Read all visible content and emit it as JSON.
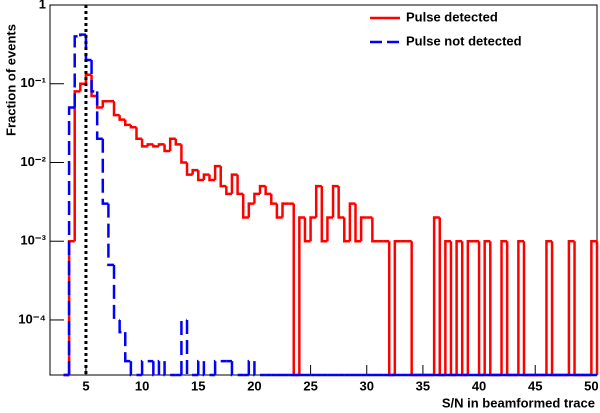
{
  "chart_data": {
    "type": "histogram",
    "xlabel": "S/N in beamformed trace",
    "ylabel": "Fraction of events",
    "log_y": true,
    "xlim": [
      1.8,
      50.5
    ],
    "ylim": [
      2e-05,
      1
    ],
    "xticks": [
      5,
      10,
      15,
      20,
      25,
      30,
      35,
      40,
      45,
      50
    ],
    "yticks": [
      1,
      {
        "value": 0.1,
        "label": "10⁻¹"
      },
      {
        "value": 0.01,
        "label": "10⁻²"
      },
      {
        "value": 0.001,
        "label": "10⁻³"
      },
      {
        "value": 0.0001,
        "label": "10⁻⁴"
      }
    ],
    "vlines": [
      5
    ],
    "legend": "top-right",
    "bins": [
      3,
      3.5,
      4,
      4.5,
      5,
      5.5,
      6,
      6.5,
      7,
      7.5,
      8,
      8.5,
      9,
      9.5,
      10,
      10.5,
      11,
      11.5,
      12,
      12.5,
      13,
      13.5,
      14,
      14.5,
      15,
      15.5,
      16,
      16.5,
      17,
      17.5,
      18,
      18.5,
      19,
      19.5,
      20,
      20.5,
      21,
      21.5,
      22,
      22.5,
      23,
      23.5,
      24,
      24.5,
      25,
      25.5,
      26,
      26.5,
      27,
      27.5,
      28,
      28.5,
      29,
      29.5,
      30,
      30.5,
      31,
      31.5,
      32,
      32.5,
      33,
      33.5,
      34,
      34.5,
      35,
      35.5,
      36,
      36.5,
      37,
      37.5,
      38,
      38.5,
      39,
      39.5,
      40,
      40.5,
      41,
      41.5,
      42,
      42.5,
      43,
      43.5,
      44,
      44.5,
      45,
      45.5,
      46,
      46.5,
      47,
      47.5,
      48,
      48.5,
      49,
      49.5,
      50,
      50.5
    ],
    "series": [
      {
        "name": "Pulse detected",
        "color": "#ff0000",
        "dash": false,
        "values": [
          0,
          0.001,
          0.08,
          0.1,
          0.13,
          0.07,
          0.05,
          0.06,
          0.06,
          0.04,
          0.035,
          0.03,
          0.028,
          0.02,
          0.016,
          0.017,
          0.016,
          0.017,
          0.014,
          0.02,
          0.017,
          0.01,
          0.007,
          0.008,
          0.006,
          0.007,
          0.006,
          0.009,
          0.005,
          0.004,
          0.007,
          0.004,
          0.002,
          0.003,
          0.004,
          0.005,
          0.004,
          0.003,
          0.002,
          0.003,
          0.003,
          0,
          0.002,
          0.001,
          0.002,
          0.005,
          0.001,
          0.002,
          0.005,
          0.002,
          0.001,
          0.003,
          0.001,
          0.002,
          0.002,
          0.001,
          0.001,
          0.001,
          0,
          0.001,
          0.001,
          0.001,
          0,
          0,
          0,
          0,
          0.002,
          0,
          0.001,
          0,
          0.001,
          0,
          0.001,
          0.001,
          0,
          0.001,
          0,
          0,
          0.001,
          0,
          0,
          0.001,
          0,
          0,
          0,
          0,
          0.001,
          0,
          0,
          0,
          0.001,
          0,
          0,
          0,
          0.001
        ]
      },
      {
        "name": "Pulse not detected",
        "color": "#0000ff",
        "dash": true,
        "values": [
          0,
          0.05,
          0.4,
          0.42,
          0.2,
          0.08,
          0.02,
          0.003,
          0.0005,
          0.0001,
          7e-05,
          3e-05,
          0,
          0,
          3e-05,
          3e-05,
          0,
          3e-05,
          0,
          0,
          0,
          0.0001,
          0,
          0,
          3e-05,
          0,
          0,
          3e-05,
          3e-05,
          3e-05,
          0,
          0,
          0,
          3e-05,
          0,
          0,
          0,
          0,
          0,
          0,
          0,
          0,
          0,
          0,
          0,
          0,
          0,
          0,
          0,
          0,
          0,
          0,
          0,
          0,
          0,
          0,
          0,
          0,
          0,
          0,
          0,
          0,
          0,
          0,
          0,
          0,
          0,
          0,
          0,
          0,
          0,
          0,
          0,
          0,
          0,
          0,
          0,
          0,
          0,
          0,
          0,
          0,
          0,
          0,
          0,
          0,
          0,
          0,
          0,
          0,
          0,
          0,
          0,
          0,
          0
        ]
      }
    ]
  }
}
